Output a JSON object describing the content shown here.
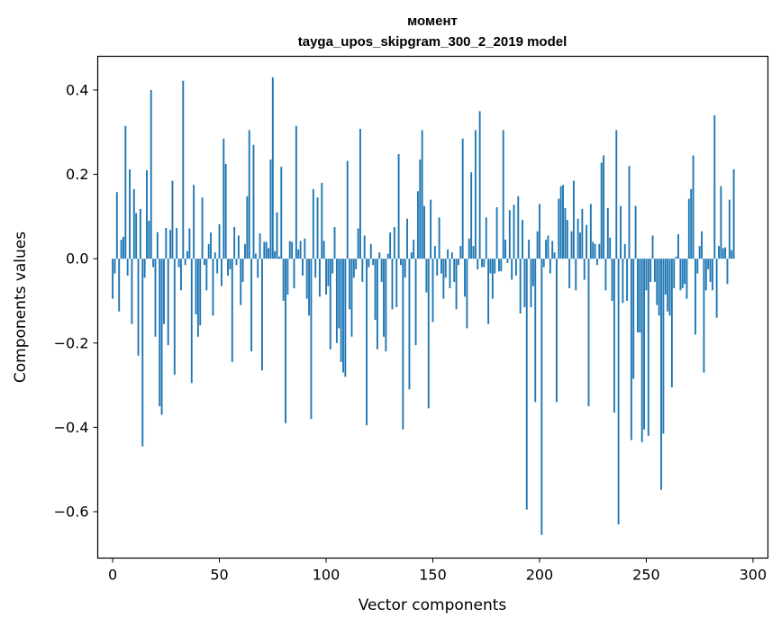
{
  "chart_data": {
    "type": "bar",
    "title": "момент",
    "subtitle": "tayga_upos_skipgram_300_2_2019 model",
    "xlabel": "Vector components",
    "ylabel": "Components values",
    "xlim": [
      -7,
      307
    ],
    "ylim": [
      -0.71,
      0.48
    ],
    "xticks": [
      0,
      50,
      100,
      150,
      200,
      250,
      300
    ],
    "yticks": [
      0.4,
      0.2,
      0.0,
      -0.2,
      -0.4,
      -0.6
    ],
    "ytick_labels": [
      "0.4",
      "0.2",
      "0.0",
      "−0.2",
      "−0.4",
      "−0.6"
    ],
    "bar_color": "#1f77b4",
    "grid": false,
    "values": [
      -0.095,
      -0.035,
      0.158,
      -0.125,
      0.045,
      0.052,
      0.315,
      -0.04,
      0.212,
      -0.155,
      0.165,
      0.108,
      -0.23,
      0.118,
      -0.445,
      -0.045,
      0.21,
      0.09,
      0.4,
      -0.02,
      -0.185,
      0.063,
      -0.35,
      -0.37,
      -0.155,
      0.073,
      -0.205,
      0.068,
      0.185,
      -0.275,
      0.073,
      -0.02,
      -0.075,
      0.422,
      -0.015,
      0.018,
      0.072,
      -0.295,
      0.175,
      -0.132,
      -0.185,
      -0.158,
      0.145,
      -0.015,
      -0.075,
      0.035,
      0.062,
      -0.135,
      0.015,
      -0.035,
      0.082,
      -0.065,
      0.285,
      0.225,
      -0.04,
      -0.025,
      -0.245,
      0.075,
      -0.015,
      0.055,
      -0.11,
      -0.055,
      0.035,
      0.148,
      0.305,
      -0.22,
      0.27,
      0.012,
      -0.045,
      0.06,
      -0.265,
      0.04,
      0.04,
      0.025,
      0.235,
      0.43,
      0.018,
      0.11,
      0.005,
      0.218,
      -0.1,
      -0.39,
      -0.085,
      0.042,
      0.04,
      -0.07,
      0.315,
      0.022,
      0.042,
      -0.04,
      0.048,
      -0.095,
      -0.135,
      -0.38,
      0.165,
      -0.045,
      0.145,
      -0.09,
      0.18,
      0.042,
      -0.085,
      -0.065,
      -0.215,
      -0.035,
      0.075,
      -0.2,
      -0.165,
      -0.245,
      -0.27,
      -0.28,
      0.232,
      -0.12,
      -0.185,
      -0.045,
      -0.025,
      0.072,
      0.308,
      -0.055,
      0.055,
      -0.395,
      -0.02,
      0.035,
      -0.015,
      -0.145,
      -0.215,
      0.015,
      -0.055,
      -0.185,
      -0.22,
      0.012,
      0.062,
      -0.12,
      0.075,
      -0.115,
      0.248,
      -0.015,
      -0.405,
      -0.045,
      0.095,
      -0.31,
      0.015,
      0.045,
      -0.205,
      0.16,
      0.235,
      0.305,
      0.125,
      -0.08,
      -0.355,
      0.14,
      -0.15,
      0.03,
      -0.04,
      0.098,
      -0.035,
      -0.095,
      -0.045,
      0.022,
      -0.07,
      0.015,
      -0.055,
      -0.12,
      -0.015,
      0.03,
      0.285,
      -0.09,
      -0.165,
      0.048,
      0.205,
      0.03,
      0.305,
      -0.025,
      0.35,
      -0.02,
      -0.02,
      0.098,
      -0.155,
      -0.035,
      -0.095,
      -0.035,
      0.122,
      -0.03,
      -0.03,
      0.305,
      0.045,
      -0.01,
      0.115,
      -0.05,
      0.128,
      -0.04,
      0.148,
      -0.13,
      0.092,
      -0.115,
      -0.595,
      0.045,
      -0.115,
      -0.065,
      -0.34,
      0.065,
      0.13,
      -0.655,
      -0.02,
      0.045,
      0.055,
      -0.035,
      0.042,
      0.015,
      -0.34,
      0.142,
      0.172,
      0.175,
      0.12,
      0.092,
      -0.07,
      0.065,
      0.185,
      -0.075,
      0.095,
      0.062,
      0.118,
      -0.05,
      0.08,
      -0.35,
      0.13,
      0.04,
      0.035,
      -0.015,
      0.035,
      0.228,
      0.245,
      -0.075,
      0.12,
      0.05,
      -0.1,
      -0.365,
      0.305,
      -0.63,
      0.125,
      -0.105,
      0.035,
      -0.1,
      0.22,
      -0.43,
      -0.285,
      0.125,
      -0.175,
      -0.175,
      -0.435,
      -0.405,
      -0.075,
      -0.42,
      -0.055,
      0.055,
      -0.055,
      -0.11,
      -0.135,
      -0.548,
      -0.415,
      -0.085,
      -0.125,
      -0.135,
      -0.305,
      -0.07,
      0.005,
      0.058,
      -0.075,
      -0.07,
      -0.06,
      -0.095,
      0.142,
      0.165,
      0.245,
      -0.18,
      -0.035,
      0.03,
      0.065,
      -0.27,
      -0.075,
      -0.025,
      -0.055,
      -0.075,
      0.34,
      -0.14,
      0.03,
      0.172,
      0.025,
      0.027,
      -0.06,
      0.14,
      0.02,
      0.212
    ]
  }
}
